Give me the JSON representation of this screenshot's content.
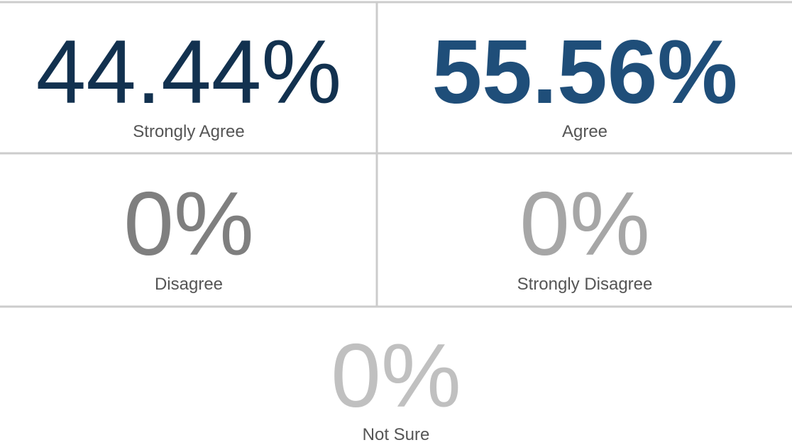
{
  "tiles": [
    {
      "value": "44.44%",
      "label": "Strongly Agree",
      "color": "#12314f",
      "bold": false
    },
    {
      "value": "55.56%",
      "label": "Agree",
      "color": "#1f4e79",
      "bold": true
    },
    {
      "value": "0%",
      "label": "Disagree",
      "color": "#7f7f7f",
      "bold": false
    },
    {
      "value": "0%",
      "label": "Strongly Disagree",
      "color": "#a6a6a6",
      "bold": false
    },
    {
      "value": "0%",
      "label": "Not Sure",
      "color": "#c0c0c0",
      "bold": false
    }
  ]
}
